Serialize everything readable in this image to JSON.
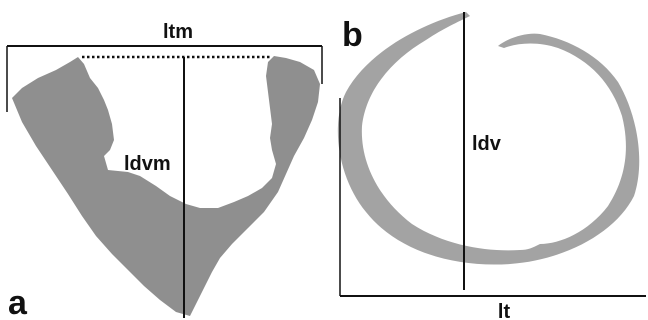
{
  "panels": {
    "a": {
      "label": "a"
    },
    "b": {
      "label": "b"
    }
  },
  "measurements": {
    "ltm": "ltm",
    "ldvm": "ldvm",
    "ldv": "ldv",
    "lt": "lt"
  },
  "colors": {
    "tissue": "#8f8f8f",
    "ring": "#a3a3a3",
    "line": "#111111",
    "background": "#ffffff"
  }
}
